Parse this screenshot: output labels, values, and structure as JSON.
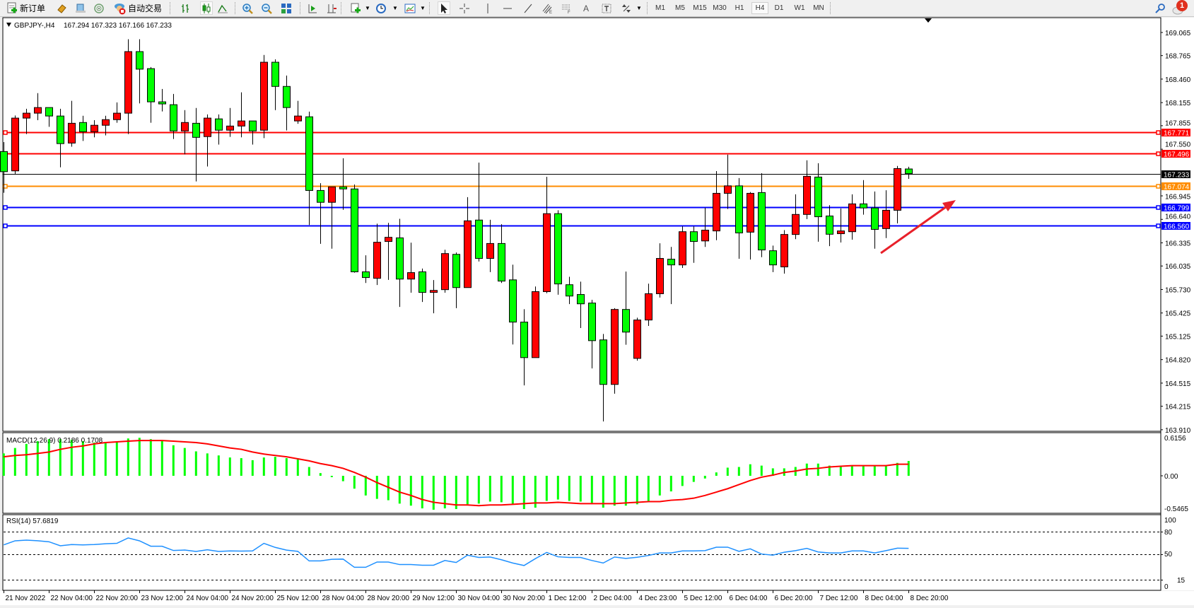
{
  "toolbar": {
    "new_order_label": "新订单",
    "auto_trading_label": "自动交易",
    "text_tool_label": "A",
    "timeframes": [
      "M1",
      "M5",
      "M15",
      "M30",
      "H1",
      "H4",
      "D1",
      "W1",
      "MN"
    ],
    "active_timeframe": "H4",
    "notification_count": "1",
    "icons": [
      "new-order-icon",
      "market-watch-icon",
      "navigator-icon",
      "signals-icon",
      "auto-trading-icon",
      "bar-chart-icon",
      "candlestick-icon",
      "line-chart-icon",
      "zoom-in-icon",
      "zoom-out-icon",
      "tile-windows-icon",
      "auto-scroll-icon",
      "chart-shift-icon",
      "indicators-icon",
      "periods-icon",
      "templates-icon",
      "cursor-icon",
      "crosshair-icon",
      "vertical-line-icon",
      "horizontal-line-icon",
      "trendline-icon",
      "fibonacci-icon",
      "fibo-fan-icon",
      "text-icon",
      "text-label-icon",
      "arrows-icon",
      "search-icon",
      "notification-icon"
    ]
  },
  "chart": {
    "header_symbol": "GBPJPY-,H4",
    "header_ohlc": "167.294 167.323 167.166 167.233",
    "price_ticks": [
      "169.065",
      "168.765",
      "168.460",
      "168.155",
      "167.855",
      "167.550",
      "166.945",
      "166.640",
      "166.335",
      "166.035",
      "165.730",
      "165.425",
      "165.125",
      "164.820",
      "164.515",
      "164.215",
      "163.910"
    ],
    "levels": [
      {
        "price": "167.771",
        "color": "#ff0000"
      },
      {
        "price": "167.496",
        "color": "#ff0000"
      },
      {
        "price": "167.233",
        "color": "#000000",
        "current": true
      },
      {
        "price": "167.074",
        "color": "#ff8c00"
      },
      {
        "price": "166.799",
        "color": "#0000ff"
      },
      {
        "price": "166.560",
        "color": "#0000ff"
      }
    ],
    "up_color": "#ff0000",
    "down_color": "#00ff00",
    "annotation": "red arrow pointing up-right",
    "macd_label": "MACD(12,26,9) 0.2186 0.1708",
    "macd_ticks": [
      "0.6156",
      "0.00",
      "-0.5465"
    ],
    "rsi_label": "RSI(14) 57.6819",
    "rsi_ticks": [
      "100",
      "80",
      "50",
      "15",
      "0"
    ],
    "x_tick_labels": [
      "21 Nov 2022",
      "22 Nov 04:00",
      "22 Nov 20:00",
      "23 Nov 12:00",
      "24 Nov 04:00",
      "24 Nov 20:00",
      "25 Nov 12:00",
      "28 Nov 04:00",
      "28 Nov 20:00",
      "29 Nov 12:00",
      "30 Nov 04:00",
      "30 Nov 20:00",
      "1 Dec 12:00",
      "2 Dec 04:00",
      "4 Dec 23:00",
      "5 Dec 12:00",
      "6 Dec 04:00",
      "6 Dec 20:00",
      "7 Dec 12:00",
      "8 Dec 04:00",
      "8 Dec 20:00"
    ]
  },
  "chart_data": [
    {
      "type": "candlestick",
      "title": "GBPJPY-,H4",
      "ylim": [
        163.91,
        169.065
      ],
      "bars_per_x_label": 4,
      "ohlc_fields": [
        "open",
        "high",
        "low",
        "close"
      ],
      "ohlc": [
        [
          167.52,
          167.643,
          166.985,
          167.259
        ],
        [
          167.269,
          167.988,
          167.226,
          167.954
        ],
        [
          167.954,
          168.075,
          167.747,
          168.018
        ],
        [
          168.018,
          168.278,
          167.927,
          168.091
        ],
        [
          168.091,
          168.091,
          167.841,
          167.981
        ],
        [
          167.981,
          168.075,
          167.316,
          167.623
        ],
        [
          167.63,
          168.178,
          167.583,
          167.887
        ],
        [
          167.897,
          167.984,
          167.657,
          167.777
        ],
        [
          167.777,
          167.927,
          167.704,
          167.861
        ],
        [
          167.861,
          167.984,
          167.73,
          167.934
        ],
        [
          167.934,
          168.158,
          167.894,
          168.018
        ],
        [
          168.018,
          168.977,
          167.747,
          168.817
        ],
        [
          168.817,
          168.977,
          168.145,
          168.589
        ],
        [
          168.596,
          168.616,
          167.894,
          168.165
        ],
        [
          168.165,
          168.332,
          168.041,
          168.138
        ],
        [
          168.128,
          168.268,
          167.683,
          167.787
        ],
        [
          167.787,
          168.058,
          167.483,
          167.897
        ],
        [
          167.887,
          168.085,
          167.132,
          167.704
        ],
        [
          167.714,
          168.001,
          167.326,
          167.954
        ],
        [
          167.944,
          168.001,
          167.61,
          167.797
        ],
        [
          167.797,
          168.085,
          167.71,
          167.851
        ],
        [
          167.851,
          168.288,
          167.704,
          167.917
        ],
        [
          167.917,
          167.917,
          167.61,
          167.787
        ],
        [
          167.797,
          168.773,
          167.694,
          168.679
        ],
        [
          168.679,
          168.716,
          168.058,
          168.365
        ],
        [
          168.365,
          168.506,
          167.794,
          168.091
        ],
        [
          167.917,
          168.178,
          167.88,
          167.981
        ],
        [
          167.971,
          168.038,
          166.567,
          167.015
        ],
        [
          167.015,
          167.109,
          166.323,
          166.861
        ],
        [
          166.861,
          167.062,
          166.26,
          167.062
        ],
        [
          167.062,
          167.433,
          166.764,
          167.035
        ],
        [
          167.035,
          167.092,
          165.949,
          165.959
        ],
        [
          165.959,
          166.173,
          165.815,
          165.885
        ],
        [
          165.875,
          166.584,
          165.788,
          166.343
        ],
        [
          166.353,
          166.594,
          165.855,
          166.407
        ],
        [
          166.4,
          166.647,
          165.504,
          165.865
        ],
        [
          165.865,
          166.337,
          165.688,
          165.949
        ],
        [
          165.959,
          166.002,
          165.568,
          165.692
        ],
        [
          165.692,
          165.852,
          165.421,
          165.718
        ],
        [
          165.728,
          166.246,
          165.688,
          166.196
        ],
        [
          166.186,
          166.21,
          165.488,
          165.755
        ],
        [
          165.755,
          166.928,
          165.755,
          166.621
        ],
        [
          166.631,
          167.376,
          166.093,
          166.133
        ],
        [
          166.133,
          166.634,
          165.956,
          166.327
        ],
        [
          166.327,
          166.577,
          165.815,
          165.839
        ],
        [
          165.855,
          166.052,
          165.016,
          165.307
        ],
        [
          165.307,
          165.474,
          164.485,
          164.846
        ],
        [
          164.846,
          165.769,
          164.846,
          165.702
        ],
        [
          165.702,
          167.192,
          165.682,
          166.714
        ],
        [
          166.714,
          166.758,
          165.662,
          165.802
        ],
        [
          165.792,
          165.895,
          165.541,
          165.645
        ],
        [
          165.665,
          165.832,
          165.23,
          165.544
        ],
        [
          165.554,
          165.595,
          164.706,
          165.066
        ],
        [
          165.076,
          165.153,
          164.017,
          164.498
        ],
        [
          164.498,
          165.488,
          164.378,
          165.471
        ],
        [
          165.471,
          165.962,
          165.013,
          165.177
        ],
        [
          164.836,
          165.364,
          164.806,
          165.334
        ],
        [
          165.334,
          165.805,
          165.257,
          165.675
        ],
        [
          165.675,
          166.33,
          165.625,
          166.133
        ],
        [
          166.123,
          166.283,
          165.541,
          166.049
        ],
        [
          166.049,
          166.55,
          166.009,
          166.48
        ],
        [
          166.48,
          166.55,
          166.076,
          166.353
        ],
        [
          166.36,
          166.791,
          166.283,
          166.5
        ],
        [
          166.49,
          167.266,
          166.37,
          166.978
        ],
        [
          166.978,
          167.48,
          166.774,
          167.075
        ],
        [
          167.075,
          167.176,
          166.129,
          166.464
        ],
        [
          166.474,
          166.995,
          166.119,
          166.978
        ],
        [
          166.988,
          167.239,
          166.149,
          166.243
        ],
        [
          166.233,
          166.3,
          165.956,
          166.049
        ],
        [
          166.023,
          166.5,
          165.936,
          166.444
        ],
        [
          166.444,
          166.965,
          166.383,
          166.704
        ],
        [
          166.704,
          167.406,
          166.644,
          167.199
        ],
        [
          167.189,
          167.369,
          166.35,
          166.674
        ],
        [
          166.684,
          166.824,
          166.293,
          166.447
        ],
        [
          166.454,
          166.781,
          166.34,
          166.49
        ],
        [
          166.48,
          166.965,
          166.377,
          166.841
        ],
        [
          166.841,
          167.149,
          166.701,
          166.788
        ],
        [
          166.788,
          167.002,
          166.26,
          166.51
        ],
        [
          166.52,
          167.018,
          166.397,
          166.758
        ],
        [
          166.758,
          167.333,
          166.587,
          167.299
        ],
        [
          167.294,
          167.323,
          167.166,
          167.233
        ]
      ]
    },
    {
      "type": "bar",
      "title": "MACD(12,26,9) 0.2186 0.1708",
      "ylim": [
        -0.5465,
        0.6156
      ],
      "series": [
        {
          "name": "MACD",
          "style": "histogram",
          "color": "#00ff00",
          "values": [
            0.33,
            0.41,
            0.47,
            0.51,
            0.54,
            0.54,
            0.53,
            0.51,
            0.49,
            0.5,
            0.51,
            0.55,
            0.56,
            0.54,
            0.51,
            0.45,
            0.41,
            0.36,
            0.33,
            0.3,
            0.27,
            0.26,
            0.23,
            0.27,
            0.28,
            0.26,
            0.24,
            0.13,
            0.04,
            -0.02,
            -0.08,
            -0.19,
            -0.29,
            -0.34,
            -0.36,
            -0.41,
            -0.44,
            -0.48,
            -0.5,
            -0.48,
            -0.49,
            -0.42,
            -0.41,
            -0.38,
            -0.39,
            -0.42,
            -0.49,
            -0.47,
            -0.37,
            -0.35,
            -0.37,
            -0.38,
            -0.4,
            -0.47,
            -0.44,
            -0.44,
            -0.42,
            -0.37,
            -0.29,
            -0.23,
            -0.15,
            -0.09,
            -0.04,
            0.05,
            0.12,
            0.13,
            0.17,
            0.15,
            0.11,
            0.11,
            0.13,
            0.18,
            0.18,
            0.15,
            0.15,
            0.15,
            0.15,
            0.15,
            0.15,
            0.19,
            0.2186
          ]
        },
        {
          "name": "Signal",
          "style": "line",
          "color": "#ff0000",
          "values": [
            0.28,
            0.3,
            0.31,
            0.33,
            0.35,
            0.39,
            0.42,
            0.44,
            0.47,
            0.49,
            0.5,
            0.51,
            0.52,
            0.52,
            0.52,
            0.51,
            0.5,
            0.49,
            0.47,
            0.44,
            0.41,
            0.39,
            0.35,
            0.32,
            0.3,
            0.28,
            0.25,
            0.22,
            0.18,
            0.15,
            0.11,
            0.05,
            -0.02,
            -0.1,
            -0.17,
            -0.24,
            -0.29,
            -0.35,
            -0.39,
            -0.41,
            -0.43,
            -0.43,
            -0.44,
            -0.43,
            -0.43,
            -0.42,
            -0.41,
            -0.4,
            -0.4,
            -0.39,
            -0.4,
            -0.41,
            -0.41,
            -0.41,
            -0.41,
            -0.4,
            -0.39,
            -0.38,
            -0.38,
            -0.36,
            -0.35,
            -0.33,
            -0.29,
            -0.24,
            -0.19,
            -0.13,
            -0.07,
            -0.02,
            0.01,
            0.05,
            0.07,
            0.1,
            0.11,
            0.13,
            0.14,
            0.15,
            0.15,
            0.15,
            0.15,
            0.17,
            0.1708
          ]
        }
      ]
    },
    {
      "type": "line",
      "title": "RSI(14) 57.6819",
      "ylim": [
        0,
        100
      ],
      "levels": [
        80,
        50,
        15
      ],
      "series": [
        {
          "name": "RSI(14)",
          "color": "#1e90ff",
          "values": [
            62.4,
            67.9,
            68.8,
            68,
            66.6,
            61.2,
            62.8,
            62.4,
            62.9,
            63.9,
            64.5,
            71.8,
            67.9,
            60.6,
            60.6,
            54.8,
            55.4,
            53.5,
            55.8,
            53.5,
            54.2,
            54,
            54.2,
            64.5,
            59,
            55.3,
            53.7,
            40.7,
            40.7,
            42.9,
            43.2,
            32.1,
            32.1,
            39.2,
            39.2,
            35.8,
            35.8,
            34.9,
            34.9,
            41.3,
            38.6,
            48.5,
            45.4,
            46,
            42.3,
            37.9,
            34.5,
            43.8,
            52.2,
            46.3,
            45.4,
            45.4,
            41.3,
            37.9,
            46,
            44.1,
            45.7,
            48.1,
            51.5,
            51.5,
            54.3,
            54.3,
            54.6,
            59.3,
            59.3,
            53.7,
            57.1,
            50,
            48.5,
            52.5,
            54.6,
            57.7,
            52.8,
            51.5,
            51.5,
            54.3,
            54.3,
            51.5,
            54.6,
            58,
            57.68
          ]
        }
      ]
    }
  ]
}
